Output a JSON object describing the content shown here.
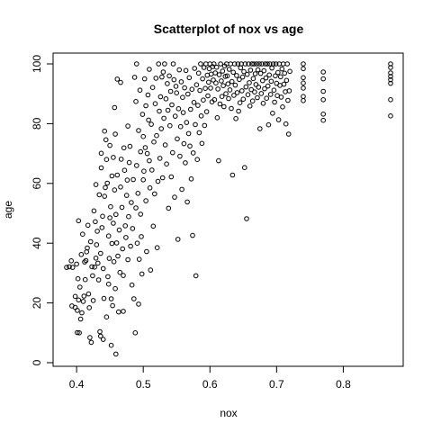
{
  "chart_data": {
    "type": "scatter",
    "title": "Scatterplot of nox vs age",
    "xlabel": "nox",
    "ylabel": "age",
    "xlim": [
      0.385,
      0.871
    ],
    "ylim": [
      2.9,
      100
    ],
    "x_ticks": [
      0.4,
      0.5,
      0.6,
      0.7,
      0.8
    ],
    "y_ticks": [
      0,
      20,
      40,
      60,
      80,
      100
    ],
    "x_tick_labels": [
      "0.4",
      "0.5",
      "0.6",
      "0.7",
      "0.8"
    ],
    "y_tick_labels": [
      "0",
      "20",
      "40",
      "60",
      "80",
      "100"
    ],
    "grid": false,
    "legend": "none",
    "marker": "open-circle",
    "color": "#000000",
    "points": [
      [
        0.385,
        31.9
      ],
      [
        0.389,
        32.1
      ],
      [
        0.392,
        34.1
      ],
      [
        0.393,
        19.0
      ],
      [
        0.394,
        31.9
      ],
      [
        0.398,
        22.2
      ],
      [
        0.398,
        18.5
      ],
      [
        0.4,
        33.0
      ],
      [
        0.401,
        17.5
      ],
      [
        0.401,
        10.1
      ],
      [
        0.402,
        28.1
      ],
      [
        0.403,
        47.5
      ],
      [
        0.403,
        21.0
      ],
      [
        0.404,
        10.0
      ],
      [
        0.405,
        25.3
      ],
      [
        0.406,
        14.6
      ],
      [
        0.407,
        36.2
      ],
      [
        0.408,
        16.7
      ],
      [
        0.409,
        43.0
      ],
      [
        0.41,
        20.5
      ],
      [
        0.411,
        22.3
      ],
      [
        0.412,
        33.7
      ],
      [
        0.413,
        27.8
      ],
      [
        0.414,
        34.2
      ],
      [
        0.415,
        37.1
      ],
      [
        0.416,
        38.4
      ],
      [
        0.417,
        46.0
      ],
      [
        0.418,
        23.0
      ],
      [
        0.419,
        18.4
      ],
      [
        0.42,
        8.4
      ],
      [
        0.421,
        40.5
      ],
      [
        0.422,
        6.8
      ],
      [
        0.423,
        32.1
      ],
      [
        0.424,
        29.1
      ],
      [
        0.425,
        20.8
      ],
      [
        0.426,
        50.8
      ],
      [
        0.427,
        32.0
      ],
      [
        0.428,
        47.2
      ],
      [
        0.429,
        59.6
      ],
      [
        0.429,
        35.0
      ],
      [
        0.43,
        39.5
      ],
      [
        0.431,
        44.0
      ],
      [
        0.432,
        33.3
      ],
      [
        0.433,
        27.7
      ],
      [
        0.434,
        56.2
      ],
      [
        0.435,
        10.4
      ],
      [
        0.436,
        8.9
      ],
      [
        0.436,
        36.6
      ],
      [
        0.437,
        65.2
      ],
      [
        0.437,
        70.1
      ],
      [
        0.438,
        45.2
      ],
      [
        0.439,
        49.0
      ],
      [
        0.44,
        31.5
      ],
      [
        0.44,
        7.8
      ],
      [
        0.441,
        21.5
      ],
      [
        0.442,
        77.5
      ],
      [
        0.442,
        55.7
      ],
      [
        0.443,
        58.6
      ],
      [
        0.444,
        74.6
      ],
      [
        0.445,
        68.0
      ],
      [
        0.445,
        15.3
      ],
      [
        0.446,
        60.1
      ],
      [
        0.447,
        28.8
      ],
      [
        0.448,
        26.3
      ],
      [
        0.448,
        42.4
      ],
      [
        0.449,
        34.9
      ],
      [
        0.45,
        72.7
      ],
      [
        0.45,
        48.5
      ],
      [
        0.451,
        52.2
      ],
      [
        0.452,
        21.4
      ],
      [
        0.452,
        5.8
      ],
      [
        0.453,
        62.5
      ],
      [
        0.453,
        39.9
      ],
      [
        0.454,
        19.1
      ],
      [
        0.455,
        68.7
      ],
      [
        0.455,
        46.7
      ],
      [
        0.456,
        33.8
      ],
      [
        0.457,
        57.8
      ],
      [
        0.457,
        85.4
      ],
      [
        0.458,
        76.5
      ],
      [
        0.458,
        24.8
      ],
      [
        0.459,
        49.6
      ],
      [
        0.459,
        2.9
      ],
      [
        0.46,
        40.1
      ],
      [
        0.461,
        62.8
      ],
      [
        0.461,
        94.9
      ],
      [
        0.462,
        35.7
      ],
      [
        0.463,
        17.0
      ],
      [
        0.464,
        44.4
      ],
      [
        0.465,
        30.2
      ],
      [
        0.466,
        58.8
      ],
      [
        0.466,
        93.8
      ],
      [
        0.467,
        68.1
      ],
      [
        0.468,
        52.0
      ],
      [
        0.469,
        38.1
      ],
      [
        0.47,
        29.2
      ],
      [
        0.47,
        17.2
      ],
      [
        0.471,
        71.9
      ],
      [
        0.472,
        64.4
      ],
      [
        0.473,
        45.8
      ],
      [
        0.474,
        41.9
      ],
      [
        0.475,
        56.0
      ],
      [
        0.476,
        61.1
      ],
      [
        0.477,
        79.2
      ],
      [
        0.477,
        34.5
      ],
      [
        0.478,
        48.9
      ],
      [
        0.479,
        67.0
      ],
      [
        0.48,
        72.4
      ],
      [
        0.481,
        39.0
      ],
      [
        0.482,
        53.6
      ],
      [
        0.483,
        26.0
      ],
      [
        0.484,
        44.9
      ],
      [
        0.485,
        61.3
      ],
      [
        0.486,
        21.4
      ],
      [
        0.487,
        95.5
      ],
      [
        0.488,
        10.0
      ],
      [
        0.489,
        51.8
      ],
      [
        0.489,
        87.4
      ],
      [
        0.49,
        100.0
      ],
      [
        0.49,
        66.0
      ],
      [
        0.491,
        40.0
      ],
      [
        0.492,
        56.7
      ],
      [
        0.493,
        77.7
      ],
      [
        0.493,
        19.6
      ],
      [
        0.494,
        34.6
      ],
      [
        0.495,
        91.2
      ],
      [
        0.496,
        70.6
      ],
      [
        0.496,
        49.7
      ],
      [
        0.497,
        42.2
      ],
      [
        0.498,
        29.7
      ],
      [
        0.499,
        83.1
      ],
      [
        0.5,
        75.7
      ],
      [
        0.5,
        61.2
      ],
      [
        0.501,
        64.1
      ],
      [
        0.502,
        95.0
      ],
      [
        0.503,
        72.0
      ],
      [
        0.504,
        86.0
      ],
      [
        0.504,
        54.2
      ],
      [
        0.505,
        37.2
      ],
      [
        0.506,
        70.0
      ],
      [
        0.507,
        89.6
      ],
      [
        0.508,
        81.2
      ],
      [
        0.509,
        98.2
      ],
      [
        0.509,
        67.6
      ],
      [
        0.51,
        58.5
      ],
      [
        0.511,
        31.0
      ],
      [
        0.512,
        79.8
      ],
      [
        0.513,
        64.5
      ],
      [
        0.514,
        92.1
      ],
      [
        0.515,
        45.7
      ],
      [
        0.516,
        73.9
      ],
      [
        0.517,
        56.5
      ],
      [
        0.518,
        86.7
      ],
      [
        0.519,
        95.2
      ],
      [
        0.52,
        76.0
      ],
      [
        0.521,
        38.5
      ],
      [
        0.522,
        60.7
      ],
      [
        0.523,
        100.0
      ],
      [
        0.524,
        84.2
      ],
      [
        0.525,
        68.4
      ],
      [
        0.526,
        89.0
      ],
      [
        0.527,
        78.3
      ],
      [
        0.528,
        95.6
      ],
      [
        0.529,
        61.9
      ],
      [
        0.53,
        97.3
      ],
      [
        0.531,
        81.8
      ],
      [
        0.532,
        100.0
      ],
      [
        0.533,
        72.9
      ],
      [
        0.534,
        88.3
      ],
      [
        0.535,
        66.5
      ],
      [
        0.536,
        93.4
      ],
      [
        0.537,
        84.5
      ],
      [
        0.538,
        51.7
      ],
      [
        0.539,
        96.0
      ],
      [
        0.54,
        79.3
      ],
      [
        0.541,
        90.8
      ],
      [
        0.542,
        62.2
      ],
      [
        0.543,
        86.3
      ],
      [
        0.544,
        70.3
      ],
      [
        0.545,
        100.0
      ],
      [
        0.546,
        94.7
      ],
      [
        0.547,
        55.4
      ],
      [
        0.548,
        82.5
      ],
      [
        0.549,
        92.5
      ],
      [
        0.55,
        90.3
      ],
      [
        0.551,
        74.9
      ],
      [
        0.552,
        41.3
      ],
      [
        0.553,
        85.0
      ],
      [
        0.554,
        98.0
      ],
      [
        0.555,
        69.1
      ],
      [
        0.556,
        79.0
      ],
      [
        0.557,
        94.0
      ],
      [
        0.558,
        58.0
      ],
      [
        0.559,
        88.8
      ],
      [
        0.56,
        83.7
      ],
      [
        0.561,
        73.3
      ],
      [
        0.562,
        92.0
      ],
      [
        0.563,
        66.9
      ],
      [
        0.564,
        97.8
      ],
      [
        0.565,
        80.4
      ],
      [
        0.566,
        53.8
      ],
      [
        0.567,
        89.9
      ],
      [
        0.568,
        76.7
      ],
      [
        0.569,
        95.4
      ],
      [
        0.57,
        72.5
      ],
      [
        0.571,
        84.8
      ],
      [
        0.572,
        61.5
      ],
      [
        0.573,
        91.5
      ],
      [
        0.574,
        42.6
      ],
      [
        0.575,
        70.2
      ],
      [
        0.576,
        87.1
      ],
      [
        0.577,
        98.5
      ],
      [
        0.578,
        79.7
      ],
      [
        0.579,
        29.1
      ],
      [
        0.58,
        93.0
      ],
      [
        0.581,
        68.0
      ],
      [
        0.582,
        86.1
      ],
      [
        0.583,
        96.9
      ],
      [
        0.584,
        77.0
      ],
      [
        0.585,
        91.1
      ],
      [
        0.586,
        100.0
      ],
      [
        0.587,
        82.6
      ],
      [
        0.588,
        73.4
      ],
      [
        0.589,
        95.0
      ],
      [
        0.59,
        87.9
      ],
      [
        0.591,
        98.8
      ],
      [
        0.592,
        79.4
      ],
      [
        0.593,
        91.8
      ],
      [
        0.594,
        100.0
      ],
      [
        0.595,
        84.0
      ],
      [
        0.596,
        96.2
      ],
      [
        0.597,
        89.3
      ],
      [
        0.598,
        93.9
      ],
      [
        0.599,
        98.4
      ],
      [
        0.6,
        100.0
      ],
      [
        0.601,
        91.9
      ],
      [
        0.602,
        96.6
      ],
      [
        0.603,
        87.3
      ],
      [
        0.604,
        99.1
      ],
      [
        0.605,
        94.6
      ],
      [
        0.606,
        100.0
      ],
      [
        0.607,
        88.0
      ],
      [
        0.608,
        97.0
      ],
      [
        0.609,
        93.6
      ],
      [
        0.61,
        98.9
      ],
      [
        0.611,
        82.0
      ],
      [
        0.612,
        91.6
      ],
      [
        0.613,
        67.6
      ],
      [
        0.614,
        96.4
      ],
      [
        0.615,
        86.6
      ],
      [
        0.616,
        100.0
      ],
      [
        0.617,
        94.3
      ],
      [
        0.618,
        89.1
      ],
      [
        0.619,
        97.6
      ],
      [
        0.62,
        92.7
      ],
      [
        0.621,
        85.7
      ],
      [
        0.622,
        99.3
      ],
      [
        0.623,
        95.8
      ],
      [
        0.624,
        90.0
      ],
      [
        0.625,
        100.0
      ],
      [
        0.626,
        96.0
      ],
      [
        0.627,
        93.3
      ],
      [
        0.628,
        88.4
      ],
      [
        0.629,
        98.2
      ],
      [
        0.63,
        91.3
      ],
      [
        0.631,
        100.0
      ],
      [
        0.632,
        85.1
      ],
      [
        0.633,
        94.1
      ],
      [
        0.634,
        62.8
      ],
      [
        0.635,
        97.2
      ],
      [
        0.636,
        89.5
      ],
      [
        0.637,
        100.0
      ],
      [
        0.638,
        92.9
      ],
      [
        0.639,
        81.7
      ],
      [
        0.64,
        96.1
      ],
      [
        0.641,
        90.4
      ],
      [
        0.642,
        100.0
      ],
      [
        0.643,
        84.2
      ],
      [
        0.644,
        94.8
      ],
      [
        0.645,
        87.0
      ],
      [
        0.646,
        98.7
      ],
      [
        0.647,
        100.0
      ],
      [
        0.648,
        91.0
      ],
      [
        0.649,
        95.6
      ],
      [
        0.65,
        88.2
      ],
      [
        0.651,
        97.4
      ],
      [
        0.652,
        65.3
      ],
      [
        0.653,
        100.0
      ],
      [
        0.654,
        92.3
      ],
      [
        0.655,
        48.2
      ],
      [
        0.656,
        96.5
      ],
      [
        0.657,
        89.7
      ],
      [
        0.658,
        100.0
      ],
      [
        0.659,
        93.7
      ],
      [
        0.66,
        85.9
      ],
      [
        0.661,
        97.9
      ],
      [
        0.662,
        91.4
      ],
      [
        0.663,
        100.0
      ],
      [
        0.664,
        87.6
      ],
      [
        0.665,
        95.1
      ],
      [
        0.666,
        100.0
      ],
      [
        0.667,
        90.6
      ],
      [
        0.668,
        96.7
      ],
      [
        0.669,
        93.1
      ],
      [
        0.67,
        100.0
      ],
      [
        0.671,
        88.7
      ],
      [
        0.672,
        98.0
      ],
      [
        0.673,
        92.2
      ],
      [
        0.674,
        100.0
      ],
      [
        0.675,
        78.3
      ],
      [
        0.676,
        96.8
      ],
      [
        0.677,
        90.1
      ],
      [
        0.678,
        100.0
      ],
      [
        0.679,
        94.4
      ],
      [
        0.68,
        86.8
      ],
      [
        0.681,
        97.7
      ],
      [
        0.682,
        91.7
      ],
      [
        0.683,
        100.0
      ],
      [
        0.684,
        95.3
      ],
      [
        0.685,
        88.5
      ],
      [
        0.686,
        100.0
      ],
      [
        0.687,
        92.6
      ],
      [
        0.688,
        79.6
      ],
      [
        0.689,
        96.3
      ],
      [
        0.69,
        100.0
      ],
      [
        0.691,
        89.8
      ],
      [
        0.692,
        94.2
      ],
      [
        0.693,
        98.6
      ],
      [
        0.694,
        83.5
      ],
      [
        0.695,
        100.0
      ],
      [
        0.696,
        91.2
      ],
      [
        0.697,
        87.2
      ],
      [
        0.698,
        96.0
      ],
      [
        0.699,
        100.0
      ],
      [
        0.7,
        93.5
      ],
      [
        0.701,
        89.4
      ],
      [
        0.702,
        97.1
      ],
      [
        0.703,
        81.3
      ],
      [
        0.704,
        100.0
      ],
      [
        0.705,
        92.8
      ],
      [
        0.706,
        95.7
      ],
      [
        0.707,
        88.9
      ],
      [
        0.708,
        98.3
      ],
      [
        0.709,
        85.6
      ],
      [
        0.71,
        100.0
      ],
      [
        0.711,
        93.2
      ],
      [
        0.712,
        96.9
      ],
      [
        0.713,
        90.7
      ],
      [
        0.714,
        79.9
      ],
      [
        0.715,
        94.5
      ],
      [
        0.716,
        100.0
      ],
      [
        0.717,
        87.8
      ],
      [
        0.718,
        76.5
      ],
      [
        0.719,
        91.0
      ],
      [
        0.72,
        97.5
      ],
      [
        0.74,
        100.0
      ],
      [
        0.74,
        98.4
      ],
      [
        0.74,
        95.4
      ],
      [
        0.74,
        93.6
      ],
      [
        0.74,
        91.9
      ],
      [
        0.74,
        89.1
      ],
      [
        0.74,
        87.7
      ],
      [
        0.77,
        97.3
      ],
      [
        0.77,
        95.0
      ],
      [
        0.77,
        90.8
      ],
      [
        0.77,
        88.0
      ],
      [
        0.77,
        83.2
      ],
      [
        0.77,
        81.1
      ],
      [
        0.871,
        100.0
      ],
      [
        0.871,
        98.8
      ],
      [
        0.871,
        97.0
      ],
      [
        0.871,
        95.8
      ],
      [
        0.871,
        94.7
      ],
      [
        0.871,
        93.5
      ],
      [
        0.871,
        88.0
      ],
      [
        0.871,
        82.6
      ]
    ]
  }
}
